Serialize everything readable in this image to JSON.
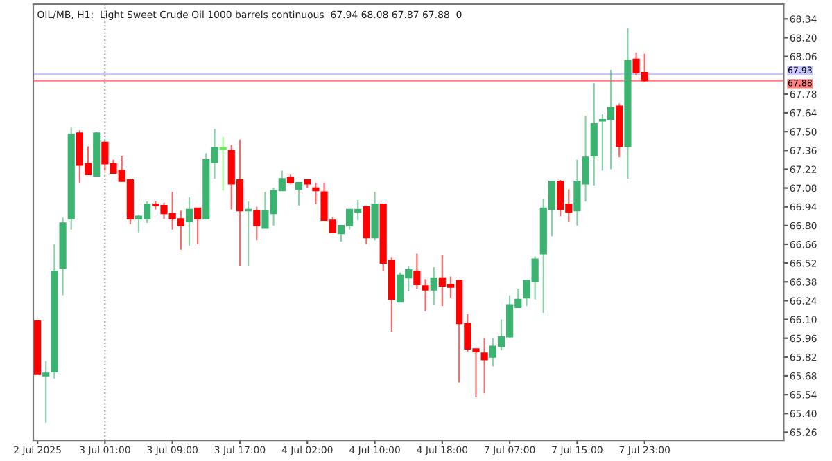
{
  "chart_data": {
    "type": "candlestick",
    "title": "OIL/MB, H1:  Light Sweet Crude Oil 1000 barrels continuous  67.94 68.08 67.87 67.88  0",
    "categories": [
      "2 Jul 2025",
      null,
      null,
      null,
      null,
      null,
      null,
      null,
      "3 Jul 01:00",
      null,
      null,
      null,
      null,
      null,
      null,
      null,
      "3 Jul 09:00",
      null,
      null,
      null,
      null,
      null,
      null,
      null,
      "3 Jul 17:00",
      null,
      null,
      null,
      null,
      null,
      null,
      null,
      "4 Jul 02:00",
      null,
      null,
      null,
      null,
      null,
      null,
      null,
      "4 Jul 10:00",
      null,
      null,
      null,
      null,
      null,
      null,
      null,
      "4 Jul 18:00",
      null,
      null,
      null,
      null,
      null,
      null,
      null,
      "7 Jul 07:00",
      null,
      null,
      null,
      null,
      null,
      null,
      null,
      "7 Jul 15:00",
      null,
      null,
      null,
      null,
      null,
      null,
      null,
      "7 Jul 23:00",
      null,
      null,
      null,
      null,
      null,
      null,
      null,
      null,
      null,
      null,
      null,
      null,
      null,
      null,
      null,
      null
    ],
    "ohlc": [
      [
        66.09,
        66.09,
        65.69,
        65.69
      ],
      [
        65.68,
        65.79,
        65.33,
        65.7
      ],
      [
        65.71,
        66.66,
        65.66,
        66.46
      ],
      [
        66.48,
        66.86,
        66.28,
        66.82
      ],
      [
        66.85,
        67.53,
        66.77,
        67.48
      ],
      [
        67.49,
        67.51,
        67.12,
        67.25
      ],
      [
        67.26,
        67.39,
        67.18,
        67.18
      ],
      [
        67.17,
        67.5,
        67.17,
        67.49
      ],
      [
        67.42,
        67.43,
        67.21,
        67.26
      ],
      [
        67.26,
        67.29,
        67.19,
        67.19
      ],
      [
        67.21,
        67.32,
        67.13,
        67.13
      ],
      [
        67.14,
        67.15,
        66.81,
        66.85
      ],
      [
        66.85,
        66.88,
        66.75,
        66.87
      ],
      [
        66.85,
        66.98,
        66.82,
        66.96
      ],
      [
        66.96,
        66.98,
        66.92,
        66.95
      ],
      [
        66.95,
        66.97,
        66.85,
        66.89
      ],
      [
        66.89,
        67.05,
        66.77,
        66.85
      ],
      [
        66.85,
        66.91,
        66.62,
        66.8
      ],
      [
        66.83,
        67.01,
        66.65,
        66.92
      ],
      [
        66.93,
        66.93,
        66.66,
        66.85
      ],
      [
        66.85,
        67.34,
        66.85,
        67.29
      ],
      [
        67.27,
        67.52,
        67.15,
        67.38
      ],
      [
        67.37,
        67.46,
        67.06,
        67.38
      ],
      [
        67.36,
        67.4,
        66.92,
        67.11
      ],
      [
        67.14,
        67.44,
        66.5,
        66.91
      ],
      [
        66.91,
        66.98,
        66.5,
        66.92
      ],
      [
        66.91,
        66.94,
        66.69,
        66.8
      ],
      [
        66.78,
        67.05,
        66.78,
        66.91
      ],
      [
        66.89,
        67.08,
        66.8,
        67.06
      ],
      [
        67.06,
        67.21,
        67.06,
        67.15
      ],
      [
        67.16,
        67.18,
        67.11,
        67.12
      ],
      [
        67.07,
        67.12,
        66.95,
        67.12
      ],
      [
        67.14,
        67.14,
        67.08,
        67.11
      ],
      [
        67.08,
        67.12,
        66.96,
        67.06
      ],
      [
        67.05,
        67.12,
        66.84,
        66.84
      ],
      [
        66.84,
        66.86,
        66.75,
        66.75
      ],
      [
        66.74,
        66.8,
        66.68,
        66.8
      ],
      [
        66.8,
        66.92,
        66.77,
        66.92
      ],
      [
        66.9,
        66.99,
        66.84,
        66.92
      ],
      [
        66.94,
        66.95,
        66.66,
        66.71
      ],
      [
        66.71,
        67.05,
        66.69,
        66.96
      ],
      [
        66.96,
        66.96,
        66.46,
        66.52
      ],
      [
        66.54,
        66.56,
        66.01,
        66.25
      ],
      [
        66.23,
        66.45,
        66.23,
        66.43
      ],
      [
        66.41,
        66.5,
        66.31,
        66.47
      ],
      [
        66.46,
        66.59,
        66.33,
        66.36
      ],
      [
        66.35,
        66.4,
        66.16,
        66.32
      ],
      [
        66.32,
        66.49,
        66.21,
        66.41
      ],
      [
        66.41,
        66.58,
        66.2,
        66.35
      ],
      [
        66.36,
        66.42,
        66.26,
        66.34
      ],
      [
        66.39,
        66.39,
        65.63,
        66.07
      ],
      [
        66.07,
        66.14,
        65.86,
        65.88
      ],
      [
        65.88,
        65.88,
        65.52,
        65.86
      ],
      [
        65.85,
        65.96,
        65.55,
        65.8
      ],
      [
        65.82,
        65.96,
        65.75,
        65.9
      ],
      [
        65.9,
        66.1,
        65.87,
        65.97
      ],
      [
        65.97,
        66.28,
        65.96,
        66.21
      ],
      [
        66.19,
        66.33,
        66.19,
        66.25
      ],
      [
        66.26,
        66.39,
        66.2,
        66.39
      ],
      [
        66.38,
        66.57,
        66.25,
        66.55
      ],
      [
        66.59,
        67.0,
        66.15,
        66.93
      ],
      [
        66.92,
        67.13,
        66.72,
        67.13
      ],
      [
        67.13,
        67.14,
        66.87,
        66.92
      ],
      [
        66.96,
        67.07,
        66.83,
        66.9
      ],
      [
        66.91,
        67.29,
        66.8,
        67.13
      ],
      [
        67.11,
        67.62,
        66.98,
        67.31
      ],
      [
        67.32,
        67.86,
        67.1,
        67.56
      ],
      [
        67.58,
        67.63,
        67.21,
        67.59
      ],
      [
        67.59,
        67.96,
        67.22,
        67.68
      ],
      [
        67.69,
        67.71,
        67.31,
        67.39
      ],
      [
        67.39,
        68.27,
        67.15,
        68.03
      ],
      [
        68.04,
        68.09,
        67.92,
        67.94
      ],
      [
        67.94,
        68.08,
        67.87,
        67.88
      ],
      null,
      null,
      null,
      null,
      null,
      null,
      null,
      null,
      null,
      null,
      null,
      null,
      null,
      null,
      null,
      null
    ],
    "colors": [
      "#ff0000",
      "#3cb371",
      "#3cb371",
      "#3cb371",
      "#3cb371",
      "#ff0000",
      "#ff0000",
      "#3cb371",
      "#ff0000",
      "#ff0000",
      "#ff0000",
      "#ff0000",
      "#3cb371",
      "#3cb371",
      "#ff0000",
      "#ff0000",
      "#ff0000",
      "#ff0000",
      "#3cb371",
      "#ff0000",
      "#3cb371",
      "#3cb371",
      "#66ee55",
      "#ff0000",
      "#ff0000",
      "#3cb371",
      "#ff0000",
      "#3cb371",
      "#3cb371",
      "#3cb371",
      "#ff0000",
      "#3cb371",
      "#ff0000",
      "#ff0000",
      "#ff0000",
      "#ff0000",
      "#3cb371",
      "#3cb371",
      "#3cb371",
      "#ff0000",
      "#3cb371",
      "#ff0000",
      "#ff0000",
      "#3cb371",
      "#3cb371",
      "#ff0000",
      "#ff0000",
      "#3cb371",
      "#ff0000",
      "#ff0000",
      "#ff0000",
      "#ff0000",
      "#ff0000",
      "#ff0000",
      "#3cb371",
      "#3cb371",
      "#3cb371",
      "#3cb371",
      "#3cb371",
      "#3cb371",
      "#3cb371",
      "#3cb371",
      "#ff0000",
      "#ff0000",
      "#3cb371",
      "#3cb371",
      "#3cb371",
      "#3cb371",
      "#3cb371",
      "#ff0000",
      "#3cb371",
      "#ff0000",
      "#ff0000",
      null,
      null,
      null,
      null,
      null,
      null,
      null,
      null,
      null,
      null,
      null,
      null,
      null,
      null,
      null,
      null
    ],
    "ylim": [
      65.2,
      68.45
    ],
    "yticks": [
      {
        "value": 65.26,
        "label": "65.26"
      },
      {
        "value": 65.4,
        "label": "65.40"
      },
      {
        "value": 65.54,
        "label": "65.54"
      },
      {
        "value": 65.68,
        "label": "65.68"
      },
      {
        "value": 65.82,
        "label": "65.82"
      },
      {
        "value": 65.96,
        "label": "65.96"
      },
      {
        "value": 66.1,
        "label": "66.10"
      },
      {
        "value": 66.24,
        "label": "66.24"
      },
      {
        "value": 66.38,
        "label": "66.38"
      },
      {
        "value": 66.52,
        "label": "66.52"
      },
      {
        "value": 66.66,
        "label": "66.66"
      },
      {
        "value": 66.8,
        "label": "66.80"
      },
      {
        "value": 66.94,
        "label": "66.94"
      },
      {
        "value": 67.08,
        "label": "67.08"
      },
      {
        "value": 67.22,
        "label": "67.22"
      },
      {
        "value": 67.36,
        "label": "67.36"
      },
      {
        "value": 67.5,
        "label": "67.50"
      },
      {
        "value": 67.64,
        "label": "67.64"
      },
      {
        "value": 67.78,
        "label": "67.78"
      },
      {
        "value": 68.06,
        "label": "68.06"
      },
      {
        "value": 68.2,
        "label": "68.20"
      },
      {
        "value": 68.34,
        "label": "68.34"
      }
    ],
    "ref_lines": [
      {
        "axis": "y",
        "value": 67.93,
        "label": "67.93",
        "color": "#c8c8ff",
        "line_style": "solid"
      },
      {
        "axis": "y",
        "value": 67.88,
        "label": "67.88",
        "color": "#ff8080",
        "line_style": "solid"
      },
      {
        "axis": "x",
        "value": "3 Jul 01:00",
        "color": "#808080",
        "line_style": "dotted"
      }
    ],
    "grid": false,
    "legend": false
  }
}
